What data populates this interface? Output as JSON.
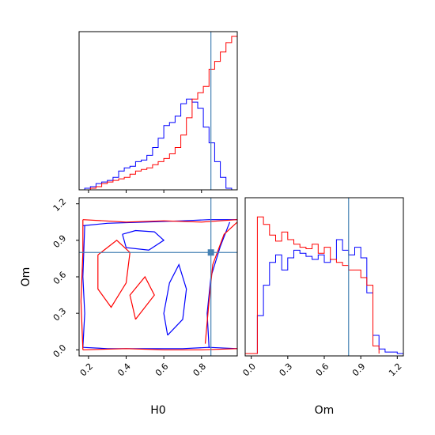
{
  "chart_data": {
    "type": "corner",
    "parameters": [
      "H0",
      "Om"
    ],
    "truth": {
      "H0": 0.85,
      "Om": 0.8
    },
    "colors": {
      "series_a": "#0000ff",
      "series_b": "#ff0000",
      "truth": "#4682b4",
      "axes": "#000000"
    },
    "x_ticks": {
      "H0": [
        "0.2",
        "0.4",
        "0.6",
        "0.8"
      ],
      "Om": [
        "0.0",
        "0.3",
        "0.6",
        "0.9",
        "1.2"
      ]
    },
    "y_ticks": {
      "Om": [
        "0.0",
        "0.3",
        "0.6",
        "0.9",
        "1.2"
      ]
    },
    "xlabel_bottom_left": "H0",
    "xlabel_bottom_right": "Om",
    "ylabel_left": "Om",
    "panels": [
      {
        "name": "H0 marginal",
        "type": "histogram",
        "xlim": [
          0.15,
          0.99
        ],
        "series": [
          {
            "color": "blue",
            "bin_edges": [
              0.15,
              0.18,
              0.21,
              0.24,
              0.27,
              0.3,
              0.33,
              0.36,
              0.39,
              0.42,
              0.45,
              0.48,
              0.51,
              0.54,
              0.57,
              0.6,
              0.63,
              0.66,
              0.69,
              0.72,
              0.75,
              0.78,
              0.81,
              0.84,
              0.87,
              0.9,
              0.93,
              0.96,
              0.99
            ],
            "counts": [
              0,
              0.01,
              0.02,
              0.04,
              0.05,
              0.06,
              0.08,
              0.12,
              0.14,
              0.15,
              0.18,
              0.19,
              0.22,
              0.27,
              0.33,
              0.41,
              0.43,
              0.47,
              0.55,
              0.58,
              0.56,
              0.52,
              0.4,
              0.3,
              0.18,
              0.08,
              0.01,
              0
            ]
          },
          {
            "color": "red",
            "bin_edges": [
              0.15,
              0.18,
              0.21,
              0.24,
              0.27,
              0.3,
              0.33,
              0.36,
              0.39,
              0.42,
              0.45,
              0.48,
              0.51,
              0.54,
              0.57,
              0.6,
              0.63,
              0.66,
              0.69,
              0.72,
              0.75,
              0.78,
              0.81,
              0.84,
              0.87,
              0.9,
              0.93,
              0.96,
              0.99
            ],
            "counts": [
              0,
              0,
              0.01,
              0.02,
              0.04,
              0.05,
              0.06,
              0.07,
              0.08,
              0.1,
              0.12,
              0.13,
              0.14,
              0.16,
              0.18,
              0.2,
              0.23,
              0.27,
              0.35,
              0.46,
              0.58,
              0.62,
              0.66,
              0.77,
              0.82,
              0.88,
              0.94,
              0.98
            ]
          }
        ]
      },
      {
        "name": "Om marginal",
        "type": "histogram",
        "xlim": [
          -0.05,
          1.25
        ],
        "series": [
          {
            "color": "blue",
            "bin_edges": [
              -0.05,
              0.0,
              0.05,
              0.1,
              0.15,
              0.2,
              0.25,
              0.3,
              0.35,
              0.4,
              0.45,
              0.5,
              0.55,
              0.6,
              0.65,
              0.7,
              0.75,
              0.8,
              0.85,
              0.9,
              0.95,
              1.0,
              1.05,
              1.1,
              1.15,
              1.2,
              1.25
            ],
            "counts": [
              0,
              0,
              0.25,
              0.45,
              0.6,
              0.65,
              0.55,
              0.63,
              0.68,
              0.66,
              0.64,
              0.62,
              0.65,
              0.6,
              0.62,
              0.75,
              0.68,
              0.65,
              0.7,
              0.63,
              0.4,
              0.12,
              0.03,
              0.01,
              0.01,
              0
            ]
          },
          {
            "color": "red",
            "bin_edges": [
              -0.05,
              0.0,
              0.05,
              0.1,
              0.15,
              0.2,
              0.25,
              0.3,
              0.35,
              0.4,
              0.45,
              0.5,
              0.55,
              0.6,
              0.65,
              0.7,
              0.75,
              0.8,
              0.85,
              0.9,
              0.95,
              1.0,
              1.05
            ],
            "counts": [
              0,
              0,
              0.9,
              0.85,
              0.78,
              0.74,
              0.8,
              0.75,
              0.72,
              0.7,
              0.69,
              0.72,
              0.66,
              0.7,
              0.62,
              0.6,
              0.58,
              0.55,
              0.55,
              0.5,
              0.45,
              0.05
            ]
          }
        ]
      },
      {
        "name": "H0 vs Om contours",
        "type": "contour",
        "xlim": [
          0.15,
          0.99
        ],
        "ylim": [
          -0.05,
          1.25
        ],
        "series": [
          {
            "color": "blue",
            "contours": [
              [
                [
                  0.17,
                  1.02
                ],
                [
                  0.3,
                  1.04
                ],
                [
                  0.5,
                  1.05
                ],
                [
                  0.7,
                  1.06
                ],
                [
                  0.84,
                  1.07
                ],
                [
                  0.99,
                  1.07
                ]
              ],
              [
                [
                  0.17,
                  0.02
                ],
                [
                  0.3,
                  0.01
                ],
                [
                  0.5,
                  0.01
                ],
                [
                  0.7,
                  0.01
                ],
                [
                  0.84,
                  0.02
                ],
                [
                  0.99,
                  0.01
                ]
              ],
              [
                [
                  0.17,
                  0.02
                ],
                [
                  0.18,
                  0.3
                ],
                [
                  0.17,
                  0.6
                ],
                [
                  0.18,
                  1.02
                ]
              ],
              [
                [
                  0.84,
                  0.02
                ],
                [
                  0.83,
                  0.3
                ],
                [
                  0.85,
                  0.6
                ],
                [
                  0.9,
                  0.85
                ],
                [
                  0.95,
                  1.05
                ]
              ],
              [
                [
                  0.38,
                  0.95
                ],
                [
                  0.45,
                  0.98
                ],
                [
                  0.55,
                  0.97
                ],
                [
                  0.6,
                  0.9
                ],
                [
                  0.52,
                  0.82
                ],
                [
                  0.4,
                  0.84
                ],
                [
                  0.38,
                  0.95
                ]
              ],
              [
                [
                  0.62,
                  0.12
                ],
                [
                  0.7,
                  0.25
                ],
                [
                  0.72,
                  0.5
                ],
                [
                  0.68,
                  0.7
                ],
                [
                  0.63,
                  0.55
                ],
                [
                  0.6,
                  0.3
                ],
                [
                  0.62,
                  0.12
                ]
              ]
            ]
          },
          {
            "color": "red",
            "contours": [
              [
                [
                  0.17,
                  1.07
                ],
                [
                  0.4,
                  1.05
                ],
                [
                  0.6,
                  1.06
                ],
                [
                  0.8,
                  1.05
                ],
                [
                  0.99,
                  1.07
                ]
              ],
              [
                [
                  0.17,
                  0.0
                ],
                [
                  0.4,
                  0.01
                ],
                [
                  0.6,
                  0.0
                ],
                [
                  0.8,
                  0.0
                ],
                [
                  0.99,
                  0.01
                ]
              ],
              [
                [
                  0.17,
                  0.0
                ],
                [
                  0.16,
                  0.4
                ],
                [
                  0.17,
                  0.8
                ],
                [
                  0.17,
                  1.07
                ]
              ],
              [
                [
                  0.82,
                  0.05
                ],
                [
                  0.84,
                  0.4
                ],
                [
                  0.86,
                  0.7
                ],
                [
                  0.92,
                  0.95
                ],
                [
                  0.99,
                  1.05
                ]
              ],
              [
                [
                  0.25,
                  0.78
                ],
                [
                  0.35,
                  0.9
                ],
                [
                  0.42,
                  0.8
                ],
                [
                  0.4,
                  0.55
                ],
                [
                  0.32,
                  0.35
                ],
                [
                  0.25,
                  0.5
                ],
                [
                  0.25,
                  0.78
                ]
              ],
              [
                [
                  0.45,
                  0.25
                ],
                [
                  0.55,
                  0.45
                ],
                [
                  0.5,
                  0.6
                ],
                [
                  0.42,
                  0.45
                ],
                [
                  0.45,
                  0.25
                ]
              ]
            ]
          }
        ]
      }
    ]
  }
}
